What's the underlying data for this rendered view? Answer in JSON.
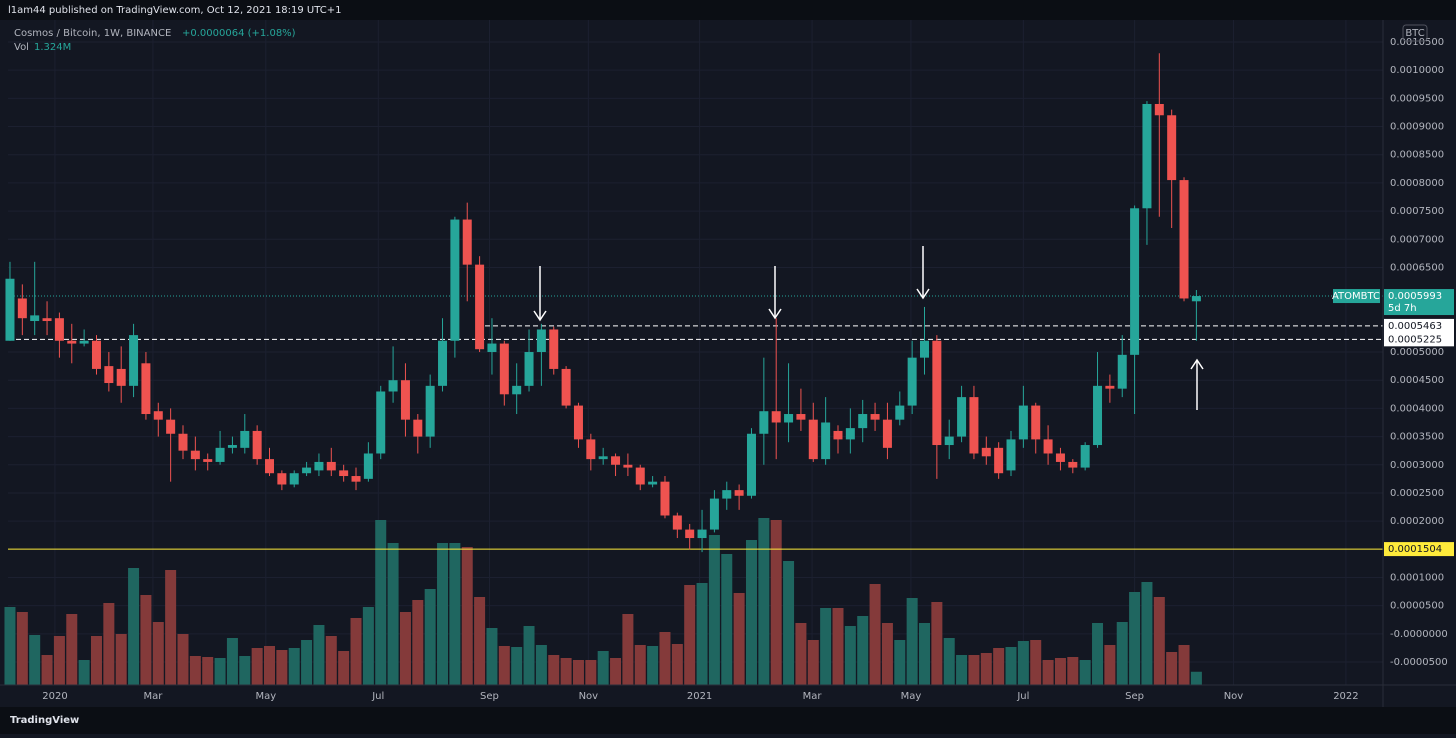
{
  "header": {
    "text": "l1am44 published on TradingView.com, Oct 12, 2021 18:19 UTC+1"
  },
  "footer": {
    "brand": "TradingView"
  },
  "chart_data": {
    "type": "candlestick",
    "title": "Cosmos / Bitcoin, 1W, BINANCE",
    "change": "+0.0000064 (+1.08%)",
    "currency": "BTC",
    "symbol": "ATOMBTC",
    "countdown": "5d 7h",
    "last": {
      "value": 0.0005993,
      "label": "0.0005993"
    },
    "levels": [
      {
        "value": 0.0005463,
        "label": "0.0005463"
      },
      {
        "value": 0.0005225,
        "label": "0.0005225"
      },
      {
        "value": 0.0001504,
        "label": "0.0001504",
        "color": "#ffeb3b"
      }
    ],
    "colors": {
      "up": "#26a69a",
      "down": "#ef5350",
      "vol_up": "#1f6660",
      "vol_down": "#843a3a"
    },
    "open": [
      0.00052,
      0.000595,
      0.000555,
      0.00056,
      0.00056,
      0.00052,
      0.000515,
      0.00052,
      0.000475,
      0.00047,
      0.00044,
      0.00048,
      0.000395,
      0.00038,
      0.000355,
      0.000325,
      0.00031,
      0.000305,
      0.00033,
      0.00033,
      0.00036,
      0.00031,
      0.000285,
      0.000265,
      0.000285,
      0.00029,
      0.000305,
      0.00029,
      0.00028,
      0.000275,
      0.00032,
      0.00043,
      0.00045,
      0.00038,
      0.00035,
      0.00044,
      0.00052,
      0.000735,
      0.000655,
      0.0005,
      0.000515,
      0.000425,
      0.00044,
      0.0005,
      0.00054,
      0.00047,
      0.000405,
      0.000345,
      0.00031,
      0.000315,
      0.0003,
      0.000295,
      0.000265,
      0.00027,
      0.00021,
      0.000185,
      0.00017,
      0.000185,
      0.00024,
      0.000255,
      0.000245,
      0.000355,
      0.000395,
      0.000375,
      0.00039,
      0.00038,
      0.00031,
      0.00036,
      0.000345,
      0.000365,
      0.00039,
      0.00038,
      0.00038,
      0.000405,
      0.00049,
      0.00052,
      0.000335,
      0.00035,
      0.00042,
      0.00033,
      0.00033,
      0.00029,
      0.000345,
      0.000405,
      0.000345,
      0.00032,
      0.000305,
      0.000295,
      0.000335,
      0.00044,
      0.000435,
      0.000495,
      0.000755,
      0.00094,
      0.00092,
      0.000805,
      0.00059
    ],
    "high": [
      0.00066,
      0.00062,
      0.00066,
      0.00059,
      0.00057,
      0.00055,
      0.00054,
      0.00053,
      0.0005,
      0.00051,
      0.00055,
      0.0005,
      0.00041,
      0.0004,
      0.00037,
      0.00035,
      0.00032,
      0.00036,
      0.00035,
      0.00039,
      0.00037,
      0.00033,
      0.00029,
      0.00029,
      0.000305,
      0.00032,
      0.00033,
      0.0003,
      0.000295,
      0.00034,
      0.00044,
      0.00051,
      0.00048,
      0.00039,
      0.00046,
      0.00056,
      0.00074,
      0.000765,
      0.00067,
      0.00056,
      0.00052,
      0.00048,
      0.00054,
      0.00055,
      0.000545,
      0.000475,
      0.00041,
      0.000355,
      0.00033,
      0.00032,
      0.00032,
      0.0003,
      0.00028,
      0.00028,
      0.000215,
      0.000195,
      0.00022,
      0.000255,
      0.00027,
      0.000265,
      0.000365,
      0.00049,
      0.00056,
      0.00048,
      0.000435,
      0.00041,
      0.00042,
      0.00037,
      0.0004,
      0.000415,
      0.00041,
      0.00041,
      0.00043,
      0.00052,
      0.00058,
      0.00053,
      0.00038,
      0.00044,
      0.00044,
      0.00035,
      0.00034,
      0.00036,
      0.00044,
      0.00041,
      0.00037,
      0.00033,
      0.00031,
      0.00034,
      0.0005,
      0.00046,
      0.00053,
      0.00076,
      0.000945,
      0.00103,
      0.00093,
      0.00081,
      0.00061
    ],
    "low": [
      0.00052,
      0.00053,
      0.00053,
      0.00053,
      0.00049,
      0.00048,
      0.00051,
      0.00046,
      0.00043,
      0.00041,
      0.00042,
      0.00038,
      0.00035,
      0.00027,
      0.00031,
      0.00029,
      0.00029,
      0.0003,
      0.00032,
      0.00032,
      0.0003,
      0.00028,
      0.000255,
      0.00026,
      0.00028,
      0.00028,
      0.00028,
      0.00027,
      0.000255,
      0.00027,
      0.00031,
      0.00041,
      0.00035,
      0.00032,
      0.00033,
      0.00043,
      0.00049,
      0.00059,
      0.0005,
      0.00046,
      0.000405,
      0.00039,
      0.00043,
      0.00044,
      0.00046,
      0.0004,
      0.00033,
      0.00029,
      0.0003,
      0.00028,
      0.00028,
      0.000255,
      0.00026,
      0.000205,
      0.00017,
      0.00015,
      0.000145,
      0.00018,
      0.00022,
      0.00022,
      0.00024,
      0.0003,
      0.00031,
      0.00034,
      0.00036,
      0.000305,
      0.0003,
      0.00032,
      0.00032,
      0.00034,
      0.00036,
      0.00031,
      0.00037,
      0.00039,
      0.00046,
      0.000275,
      0.00031,
      0.00034,
      0.00031,
      0.0003,
      0.000275,
      0.00028,
      0.00033,
      0.00032,
      0.0003,
      0.00029,
      0.000285,
      0.00029,
      0.00033,
      0.00041,
      0.00042,
      0.00039,
      0.00069,
      0.00074,
      0.00072,
      0.00059,
      0.00052
    ],
    "close": [
      0.00063,
      0.00056,
      0.000565,
      0.000555,
      0.00052,
      0.000515,
      0.00052,
      0.00047,
      0.000445,
      0.00044,
      0.00053,
      0.00039,
      0.00038,
      0.000355,
      0.000325,
      0.00031,
      0.000305,
      0.00033,
      0.000335,
      0.00036,
      0.00031,
      0.000285,
      0.000265,
      0.000285,
      0.000295,
      0.000305,
      0.00029,
      0.00028,
      0.00027,
      0.00032,
      0.00043,
      0.00045,
      0.00038,
      0.00035,
      0.00044,
      0.00052,
      0.000735,
      0.000655,
      0.000505,
      0.000515,
      0.000425,
      0.00044,
      0.0005,
      0.00054,
      0.00047,
      0.000405,
      0.000345,
      0.00031,
      0.000315,
      0.0003,
      0.000295,
      0.000265,
      0.00027,
      0.00021,
      0.000185,
      0.00017,
      0.000185,
      0.00024,
      0.000255,
      0.000245,
      0.000355,
      0.000395,
      0.000375,
      0.00039,
      0.00038,
      0.00031,
      0.000375,
      0.000345,
      0.000365,
      0.00039,
      0.00038,
      0.00033,
      0.000405,
      0.00049,
      0.00052,
      0.000335,
      0.00035,
      0.00042,
      0.00032,
      0.000315,
      0.000285,
      0.000345,
      0.000405,
      0.000345,
      0.00032,
      0.000305,
      0.000295,
      0.000335,
      0.00044,
      0.000435,
      0.000495,
      0.000755,
      0.00094,
      0.00092,
      0.000805,
      0.000595,
      0.0005993
    ],
    "volume": {
      "name": "Vol",
      "last_label": "1.324M",
      "values": [
        7800000,
        7300000,
        5000000,
        3000000,
        4900000,
        7100000,
        2500000,
        4900000,
        8200000,
        5100000,
        11700000,
        9000000,
        6300000,
        11500000,
        5100000,
        2900000,
        2800000,
        2700000,
        4700000,
        2900000,
        3700000,
        3900000,
        3500000,
        3700000,
        4500000,
        6000000,
        4900000,
        3400000,
        6700000,
        7800000,
        16500000,
        14200000,
        7300000,
        8500000,
        9600000,
        14200000,
        14200000,
        13800000,
        8800000,
        5700000,
        3900000,
        3800000,
        5900000,
        4000000,
        3000000,
        2700000,
        2500000,
        2500000,
        3400000,
        2700000,
        7100000,
        4000000,
        3900000,
        5300000,
        4100000,
        10000000,
        10200000,
        15000000,
        13100000,
        9200000,
        14500000,
        16700000,
        16500000,
        12400000,
        6200000,
        4500000,
        7700000,
        7700000,
        5900000,
        6900000,
        10100000,
        6200000,
        4500000,
        8700000,
        6200000,
        8300000,
        4700000,
        3000000,
        3000000,
        3200000,
        3700000,
        3800000,
        4400000,
        4500000,
        2500000,
        2700000,
        2800000,
        2500000,
        6200000,
        4000000,
        6300000,
        9300000,
        10300000,
        8800000,
        3300000,
        4000000,
        1324000
      ]
    },
    "ylim": [
      -9.07e-05,
      0.001089
    ],
    "yticks": [
      {
        "value": 0.00105,
        "label": "0.0010500"
      },
      {
        "value": 0.001,
        "label": "0.0010000"
      },
      {
        "value": 0.00095,
        "label": "0.0009500"
      },
      {
        "value": 0.0009,
        "label": "0.0009000"
      },
      {
        "value": 0.00085,
        "label": "0.0008500"
      },
      {
        "value": 0.0008,
        "label": "0.0008000"
      },
      {
        "value": 0.00075,
        "label": "0.0007500"
      },
      {
        "value": 0.0007,
        "label": "0.0007000"
      },
      {
        "value": 0.00065,
        "label": "0.0006500"
      },
      {
        "value": 0.0005,
        "label": "0.0005000"
      },
      {
        "value": 0.00045,
        "label": "0.0004500"
      },
      {
        "value": 0.0004,
        "label": "0.0004000"
      },
      {
        "value": 0.00035,
        "label": "0.0003500"
      },
      {
        "value": 0.0003,
        "label": "0.0003000"
      },
      {
        "value": 0.00025,
        "label": "0.0002500"
      },
      {
        "value": 0.0002,
        "label": "0.0002000"
      },
      {
        "value": 0.0001,
        "label": "0.0001000"
      },
      {
        "value": 5e-05,
        "label": "0.0000500"
      },
      {
        "value": 0,
        "label": "-0.0000000"
      },
      {
        "value": -5e-05,
        "label": "-0.0000500"
      }
    ],
    "xlim": [
      -0.16,
      111.1
    ],
    "xticks": [
      {
        "value": 3.64,
        "label": "2020"
      },
      {
        "value": 11.57,
        "label": "Mar"
      },
      {
        "value": 20.7,
        "label": "May"
      },
      {
        "value": 29.8,
        "label": "Jul"
      },
      {
        "value": 38.8,
        "label": "Sep"
      },
      {
        "value": 46.8,
        "label": "Nov"
      },
      {
        "value": 55.8,
        "label": "2021"
      },
      {
        "value": 64.9,
        "label": "Mar"
      },
      {
        "value": 72.9,
        "label": "May"
      },
      {
        "value": 82.0,
        "label": "Jul"
      },
      {
        "value": 91.0,
        "label": "Sep"
      },
      {
        "value": 99.0,
        "label": "Nov"
      },
      {
        "value": 108.1,
        "label": "2022"
      }
    ],
    "grid": true
  }
}
